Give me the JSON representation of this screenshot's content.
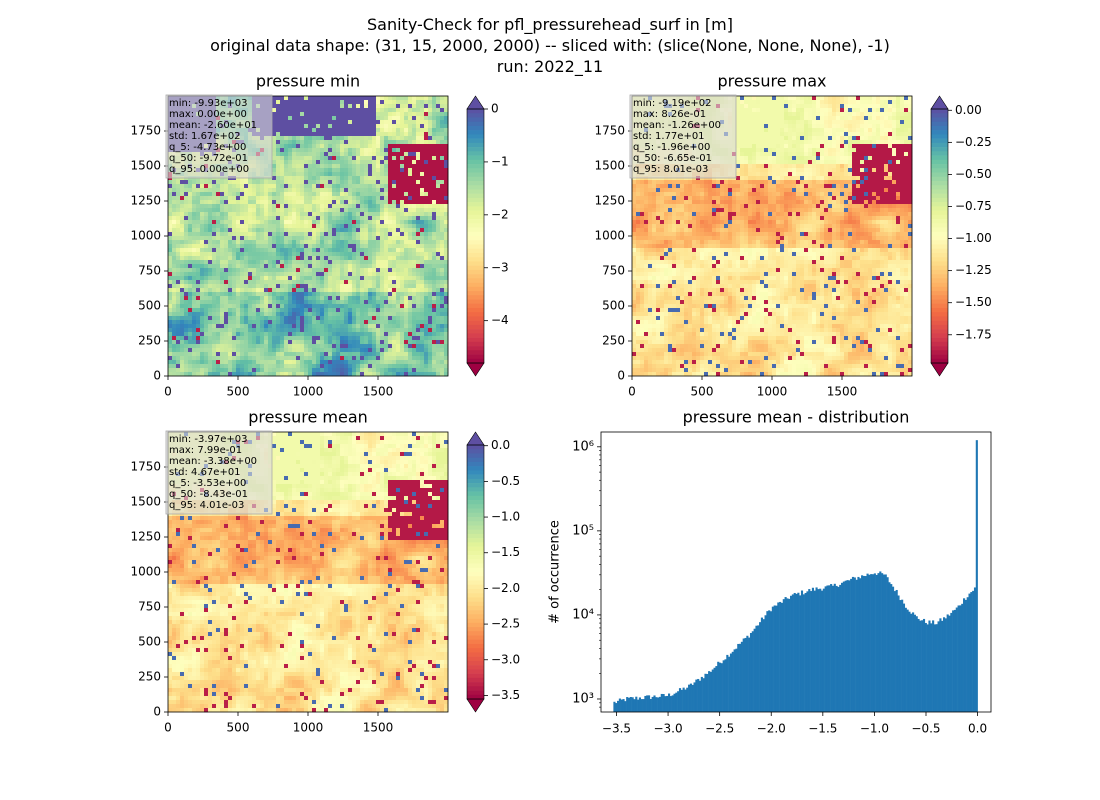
{
  "figure": {
    "title_lines": [
      "Sanity-Check for pfl_pressurehead_surf in [m]",
      "original data shape: (31, 15, 2000, 2000) -- sliced with: (slice(None, None, None), -1)",
      "run: 2022_11"
    ]
  },
  "chart_data": [
    {
      "type": "heatmap",
      "title": "pressure min",
      "colormap": "Spectral",
      "xlim": [
        0,
        2000
      ],
      "ylim": [
        0,
        2000
      ],
      "x_ticks": [
        "0",
        "500",
        "1000",
        "1500"
      ],
      "y_ticks": [
        "0",
        "250",
        "500",
        "750",
        "1000",
        "1250",
        "1500",
        "1750"
      ],
      "colorbar": {
        "range": [
          -4.8,
          0
        ],
        "ticks": [
          "0",
          "−1",
          "−2",
          "−3",
          "−4"
        ],
        "tick_values": [
          0,
          -1,
          -2,
          -3,
          -4
        ],
        "extend": "both",
        "max_extend_color": "#5e4fa2",
        "min_extend_color": "#9e0142"
      },
      "stats_box": [
        "min: -9.93e+03",
        "max: 0.00e+00",
        "mean: -2.60e+01",
        "std: 1.67e+02",
        "q_5: -4.73e+00",
        "q_50: -9.72e-01",
        "q_95: 0.00e+00"
      ]
    },
    {
      "type": "heatmap",
      "title": "pressure max",
      "colormap": "Spectral",
      "xlim": [
        0,
        2000
      ],
      "ylim": [
        0,
        2000
      ],
      "x_ticks": [
        "0",
        "500",
        "1000",
        "1500"
      ],
      "y_ticks": [
        "0",
        "250",
        "500",
        "750",
        "1000",
        "1250",
        "1500",
        "1750"
      ],
      "colorbar": {
        "range": [
          -1.97,
          0.01
        ],
        "ticks": [
          "0.00",
          "−0.25",
          "−0.50",
          "−0.75",
          "−1.00",
          "−1.25",
          "−1.50",
          "−1.75"
        ],
        "tick_values": [
          0,
          -0.25,
          -0.5,
          -0.75,
          -1.0,
          -1.25,
          -1.5,
          -1.75
        ],
        "extend": "both",
        "max_extend_color": "#5e4fa2",
        "min_extend_color": "#9e0142"
      },
      "stats_box": [
        "min: -9.19e+02",
        "max: 8.26e-01",
        "mean: -1.26e+00",
        "std: 1.77e+01",
        "q_5: -1.96e+00",
        "q_50: -6.65e-01",
        "q_95: 8.01e-03"
      ]
    },
    {
      "type": "heatmap",
      "title": "pressure mean",
      "colormap": "Spectral",
      "xlim": [
        0,
        2000
      ],
      "ylim": [
        0,
        2000
      ],
      "x_ticks": [
        "0",
        "500",
        "1000",
        "1500"
      ],
      "y_ticks": [
        "0",
        "250",
        "500",
        "750",
        "1000",
        "1250",
        "1500",
        "1750"
      ],
      "colorbar": {
        "range": [
          -3.55,
          0.01
        ],
        "ticks": [
          "0.0",
          "−0.5",
          "−1.0",
          "−1.5",
          "−2.0",
          "−2.5",
          "−3.0",
          "−3.5"
        ],
        "tick_values": [
          0,
          -0.5,
          -1.0,
          -1.5,
          -2.0,
          -2.5,
          -3.0,
          -3.5
        ],
        "extend": "both",
        "max_extend_color": "#5e4fa2",
        "min_extend_color": "#9e0142"
      },
      "stats_box": [
        "min: -3.97e+03",
        "max: 7.99e-01",
        "mean: -3.38e+00",
        "std: 4.67e+01",
        "q_5: -3.53e+00",
        "q_50: -8.43e-01",
        "q_95: 4.01e-03"
      ]
    },
    {
      "type": "bar",
      "title": "pressure mean - distribution",
      "ylabel": "# of occurrence",
      "xlabel": "",
      "yscale": "log",
      "xlim": [
        -3.65,
        0.13
      ],
      "ylim": [
        700,
        1500000
      ],
      "x_ticks": [
        "−3.5",
        "−3.0",
        "−2.5",
        "−2.0",
        "−1.5",
        "−1.0",
        "−0.5",
        "0.0"
      ],
      "x_tick_values": [
        -3.5,
        -3.0,
        -2.5,
        -2.0,
        -1.5,
        -1.0,
        -0.5,
        0.0
      ],
      "y_ticks": [
        "10³",
        "10⁴",
        "10⁵",
        "10⁶"
      ],
      "y_tick_values": [
        1000,
        10000,
        100000,
        1000000
      ],
      "color": "#1f77b4",
      "bin_range": [
        -3.53,
        0.0
      ],
      "profile": {
        "x": [
          -3.53,
          -3.4,
          -3.2,
          -3.0,
          -2.8,
          -2.6,
          -2.4,
          -2.2,
          -2.0,
          -1.8,
          -1.6,
          -1.4,
          -1.2,
          -1.0,
          -0.9,
          -0.8,
          -0.7,
          -0.6,
          -0.5,
          -0.4,
          -0.3,
          -0.2,
          -0.1,
          -0.02
        ],
        "counts": [
          900,
          1000,
          1050,
          1100,
          1400,
          2100,
          3500,
          6000,
          12000,
          17000,
          20000,
          22000,
          27000,
          32000,
          30000,
          20000,
          13000,
          9500,
          8200,
          8000,
          9500,
          12000,
          17000,
          21000
        ]
      },
      "peak": {
        "x": 0.0,
        "count": 1200000
      }
    }
  ]
}
